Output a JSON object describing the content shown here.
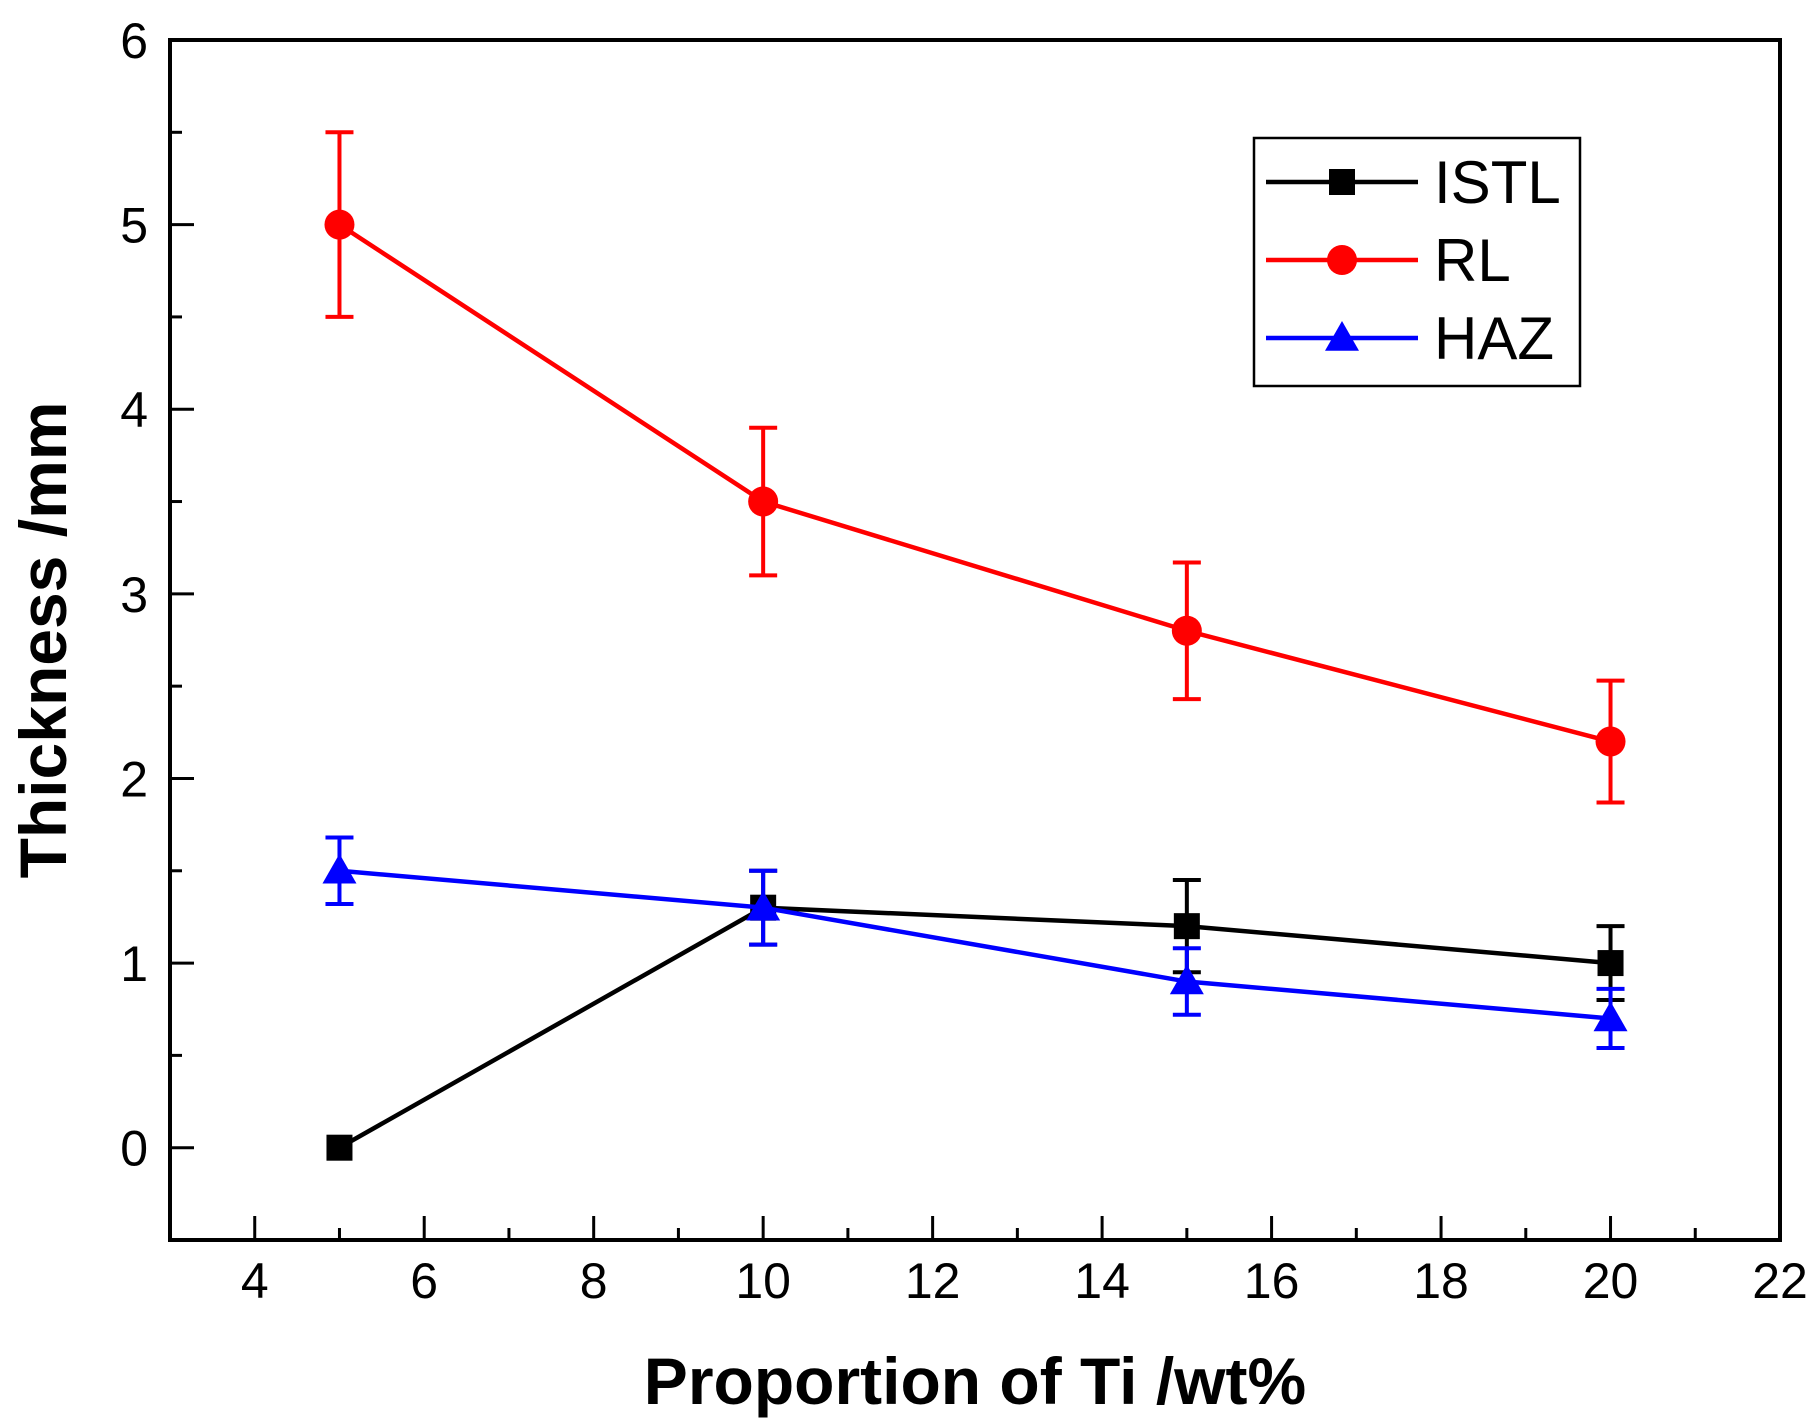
{
  "chart_data": {
    "type": "line",
    "xlabel": "Proportion of Ti /wt%",
    "ylabel": "Thickness /mm",
    "xlim": [
      3,
      22
    ],
    "ylim": [
      -0.5,
      6
    ],
    "x_ticks": [
      4,
      6,
      8,
      10,
      12,
      14,
      16,
      18,
      20,
      22
    ],
    "y_ticks": [
      0,
      1,
      2,
      3,
      4,
      5,
      6
    ],
    "x_minor_step": 1,
    "y_minor_step": 0.5,
    "grid": false,
    "legend_position": "top-right",
    "series": [
      {
        "name": "ISTL",
        "color": "#000000",
        "marker": "square",
        "x": [
          5,
          10,
          15,
          20
        ],
        "y": [
          0,
          1.3,
          1.2,
          1.0
        ],
        "error": [
          0,
          0.2,
          0.25,
          0.2
        ]
      },
      {
        "name": "RL",
        "color": "#ff0000",
        "marker": "circle",
        "x": [
          5,
          10,
          15,
          20
        ],
        "y": [
          5.0,
          3.5,
          2.8,
          2.2
        ],
        "error": [
          0.5,
          0.4,
          0.37,
          0.33
        ]
      },
      {
        "name": "HAZ",
        "color": "#0000ff",
        "marker": "triangle",
        "x": [
          5,
          10,
          15,
          20
        ],
        "y": [
          1.5,
          1.3,
          0.9,
          0.7
        ],
        "error": [
          0.18,
          0.2,
          0.18,
          0.16
        ]
      }
    ]
  }
}
